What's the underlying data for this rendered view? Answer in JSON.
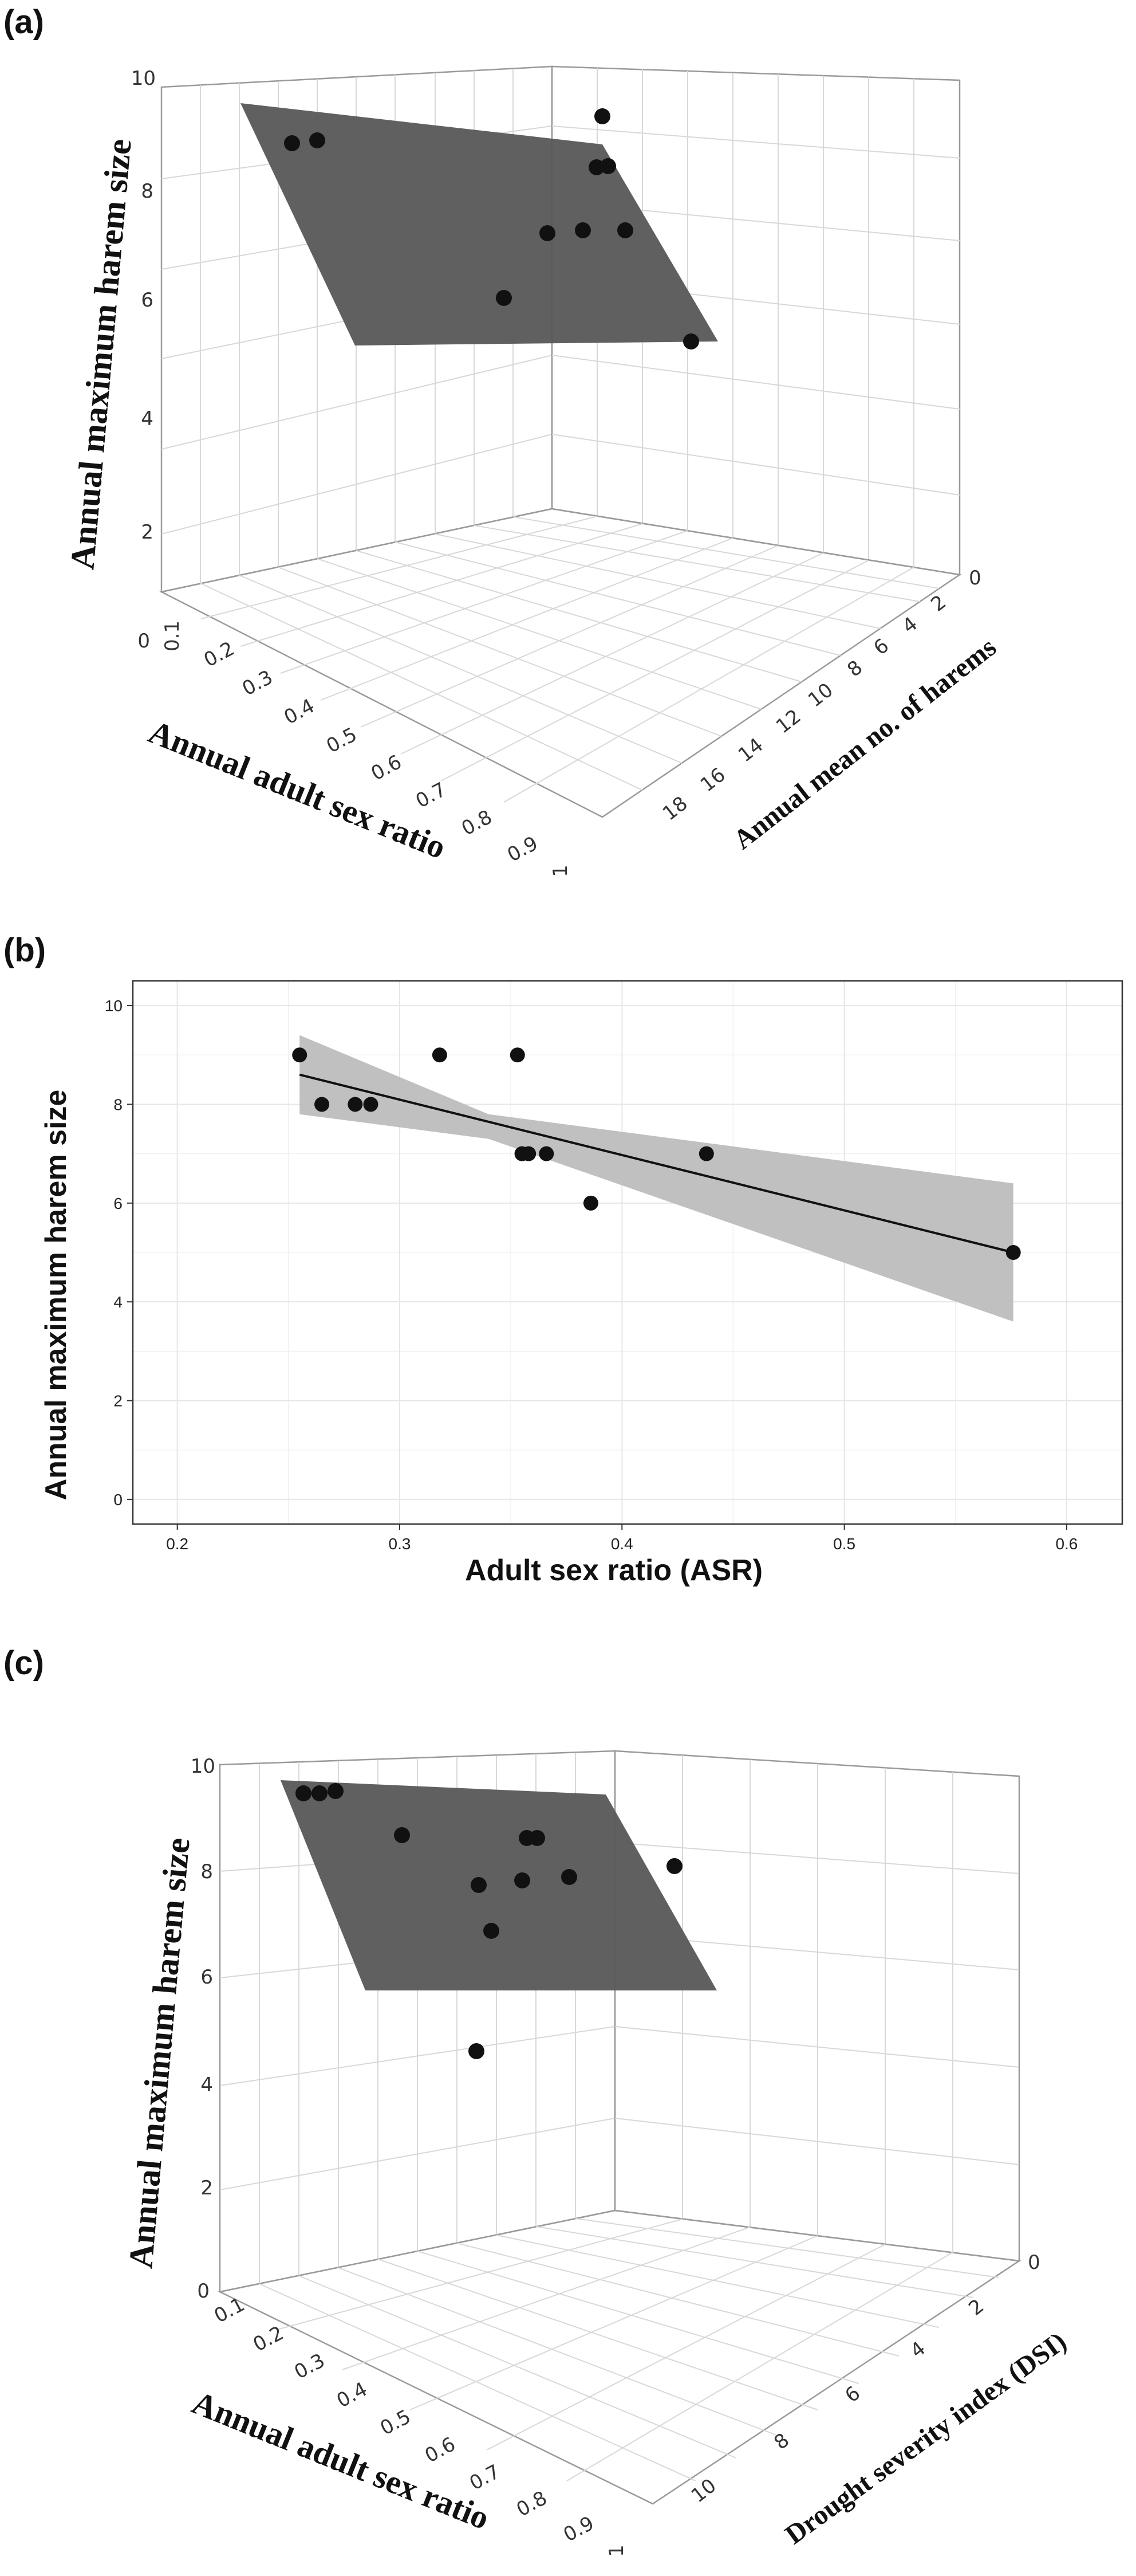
{
  "colors": {
    "point": "#111111",
    "plane": "#5a5a5a",
    "band": "#bdbdbd",
    "line": "#111111"
  },
  "chart_data": [
    {
      "type": "scatter",
      "panel_label": "(a)",
      "xlabel": "Annual adult sex ratio",
      "ylabel": "Annual mean no. of harems",
      "zlabel": "Annual maximum harem size",
      "x_ticks": [
        "0.1",
        "0.2",
        "0.3",
        "0.4",
        "0.5",
        "0.6",
        "0.7",
        "0.8",
        "0.9",
        "1"
      ],
      "y_ticks": [
        "0",
        "2",
        "4",
        "6",
        "8",
        "10",
        "12",
        "14",
        "16",
        "18"
      ],
      "z_ticks": [
        "0",
        "2",
        "4",
        "6",
        "8",
        "10"
      ]
    },
    {
      "type": "scatter",
      "panel_label": "(b)",
      "xlabel": "Adult sex ratio (ASR)",
      "ylabel": "Annual maximum harem size",
      "xlim": [
        0.18,
        0.625
      ],
      "ylim": [
        -0.5,
        10.5
      ],
      "x_ticks": [
        "0.2",
        "0.3",
        "0.4",
        "0.5",
        "0.6"
      ],
      "y_ticks": [
        "0",
        "2",
        "4",
        "6",
        "8",
        "10"
      ],
      "x": [
        0.255,
        0.265,
        0.28,
        0.287,
        0.318,
        0.353,
        0.355,
        0.358,
        0.366,
        0.386,
        0.438,
        0.576
      ],
      "y": [
        9,
        8,
        8,
        8,
        9,
        9,
        7,
        7,
        7,
        6,
        7,
        5
      ],
      "fit": {
        "x": [
          0.255,
          0.576
        ],
        "y": [
          8.6,
          5.0
        ]
      },
      "band": {
        "x": [
          0.255,
          0.34,
          0.576
        ],
        "lower": [
          7.8,
          7.3,
          3.6
        ],
        "upper": [
          9.4,
          7.8,
          6.4
        ]
      }
    },
    {
      "type": "scatter",
      "panel_label": "(c)",
      "xlabel": "Annual adult sex ratio",
      "ylabel": "Drought severity index (DSI)",
      "zlabel": "Annual maximum harem size",
      "x_ticks": [
        "0.1",
        "0.2",
        "0.3",
        "0.4",
        "0.5",
        "0.6",
        "0.7",
        "0.8",
        "0.9",
        "1"
      ],
      "y_ticks": [
        "0",
        "2",
        "4",
        "6",
        "8",
        "10"
      ],
      "z_ticks": [
        "0",
        "2",
        "4",
        "6",
        "8",
        "10"
      ]
    }
  ]
}
